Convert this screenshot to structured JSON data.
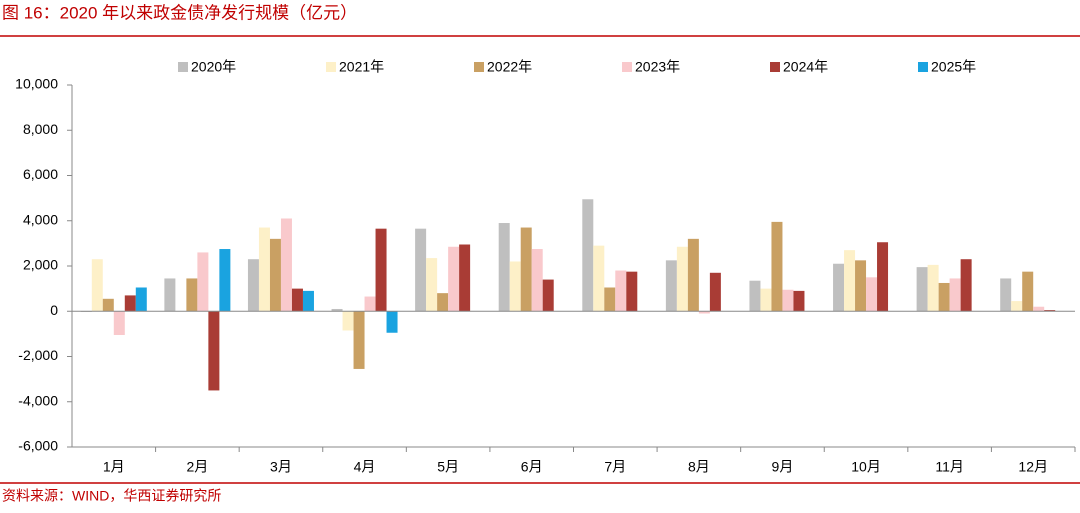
{
  "chart_data": {
    "type": "bar",
    "title": "图 16：2020 年以来政金债净发行规模（亿元）",
    "source": "资料来源：WIND，华西证券研究所",
    "categories": [
      "1月",
      "2月",
      "3月",
      "4月",
      "5月",
      "6月",
      "7月",
      "8月",
      "9月",
      "10月",
      "11月",
      "12月"
    ],
    "series": [
      {
        "name": "2020年",
        "color": "#bfbfbf",
        "values": [
          -30,
          1450,
          2300,
          100,
          3650,
          3900,
          4950,
          2250,
          1350,
          2100,
          1950,
          1450
        ]
      },
      {
        "name": "2021年",
        "color": "#fdf0c8",
        "values": [
          2300,
          0,
          3700,
          -850,
          2350,
          2200,
          2900,
          2850,
          1000,
          2700,
          2050,
          450
        ]
      },
      {
        "name": "2022年",
        "color": "#c9a063",
        "values": [
          550,
          1450,
          3200,
          -2550,
          800,
          3700,
          1050,
          3200,
          3950,
          2250,
          1250,
          1750
        ]
      },
      {
        "name": "2023年",
        "color": "#f9c9cc",
        "values": [
          -1050,
          2600,
          4100,
          650,
          2850,
          2750,
          1800,
          -100,
          950,
          1500,
          1450,
          200
        ]
      },
      {
        "name": "2024年",
        "color": "#a93c35",
        "values": [
          700,
          -3500,
          1000,
          3650,
          2950,
          1400,
          1750,
          1700,
          900,
          3050,
          2300,
          50
        ]
      },
      {
        "name": "2025年",
        "color": "#1aa3e0",
        "values": [
          1050,
          2750,
          900,
          -950,
          null,
          null,
          null,
          null,
          null,
          null,
          null,
          null
        ]
      }
    ],
    "ylim": [
      -6000,
      10000
    ],
    "yticks": [
      {
        "value": -6000,
        "label": "-6,000"
      },
      {
        "value": -4000,
        "label": "-4,000"
      },
      {
        "value": -2000,
        "label": "-2,000"
      },
      0,
      {
        "value": 2000,
        "label": "2,000"
      },
      {
        "value": 4000,
        "label": "4,000"
      },
      {
        "value": 6000,
        "label": "6,000"
      },
      {
        "value": 8000,
        "label": "8,000"
      },
      {
        "value": 10000,
        "label": "10,000"
      }
    ],
    "grid": false
  }
}
